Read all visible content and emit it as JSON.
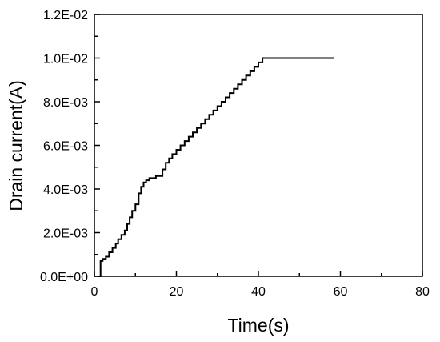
{
  "chart_data": {
    "type": "line",
    "title": "",
    "xlabel": "Time(s)",
    "ylabel": "Drain current(A)",
    "xlim": [
      0,
      80
    ],
    "ylim": [
      0,
      0.012
    ],
    "xticks": [
      {
        "value": 0,
        "label": "0"
      },
      {
        "value": 20,
        "label": "20"
      },
      {
        "value": 40,
        "label": "40"
      },
      {
        "value": 60,
        "label": "60"
      },
      {
        "value": 80,
        "label": "80"
      }
    ],
    "yticks": [
      {
        "value": 0,
        "label": "0.0E+00"
      },
      {
        "value": 0.002,
        "label": "2.0E-03"
      },
      {
        "value": 0.004,
        "label": "4.0E-03"
      },
      {
        "value": 0.006,
        "label": "6.0E-03"
      },
      {
        "value": 0.008,
        "label": "8.0E-03"
      },
      {
        "value": 0.01,
        "label": "1.0E-02"
      },
      {
        "value": 0.012,
        "label": "1.2E-02"
      }
    ],
    "grid": false,
    "legend": "none",
    "line_color": "#000000",
    "series": [
      {
        "x": [
          1.0,
          1.5,
          1.5,
          2.0,
          2.0,
          2.8,
          2.8,
          3.6,
          3.6,
          4.4,
          4.4,
          5.2,
          5.2,
          5.8,
          5.8,
          6.6,
          6.6,
          7.4,
          7.4,
          8.0,
          8.0,
          8.6,
          8.6,
          9.2,
          9.2,
          10.0,
          10.0,
          10.8,
          10.8,
          11.4,
          11.4,
          12.0,
          12.0,
          12.6,
          12.6,
          13.4,
          13.4,
          15.0,
          15.0,
          16.6,
          16.6,
          17.4,
          17.4,
          18.2,
          18.2,
          19.0,
          19.0,
          20.0,
          20.0,
          21.0,
          21.0,
          22.0,
          22.0,
          23.0,
          23.0,
          24.0,
          24.0,
          25.0,
          25.0,
          26.0,
          26.0,
          27.0,
          27.0,
          28.0,
          28.0,
          29.0,
          29.0,
          30.0,
          30.0,
          31.0,
          31.0,
          32.0,
          32.0,
          33.0,
          33.0,
          34.0,
          34.0,
          35.0,
          35.0,
          36.0,
          36.0,
          37.0,
          37.0,
          38.0,
          38.0,
          39.0,
          39.0,
          40.0,
          40.0,
          41.0,
          41.0,
          58.5
        ],
        "y": [
          0.0,
          0.0,
          0.0007,
          0.0007,
          0.0008,
          0.0008,
          0.0009,
          0.0009,
          0.0011,
          0.0011,
          0.0013,
          0.0013,
          0.0015,
          0.0015,
          0.0017,
          0.0017,
          0.0019,
          0.0019,
          0.0021,
          0.0021,
          0.0024,
          0.0024,
          0.0027,
          0.0027,
          0.003,
          0.003,
          0.0033,
          0.0033,
          0.0038,
          0.0038,
          0.0041,
          0.0041,
          0.0043,
          0.0043,
          0.0044,
          0.0044,
          0.0045,
          0.0045,
          0.0046,
          0.0046,
          0.0049,
          0.0049,
          0.0052,
          0.0052,
          0.0054,
          0.0054,
          0.0056,
          0.0056,
          0.0058,
          0.0058,
          0.006,
          0.006,
          0.0062,
          0.0062,
          0.0064,
          0.0064,
          0.0066,
          0.0066,
          0.0068,
          0.0068,
          0.007,
          0.007,
          0.0072,
          0.0072,
          0.0074,
          0.0074,
          0.0076,
          0.0076,
          0.0078,
          0.0078,
          0.008,
          0.008,
          0.0082,
          0.0082,
          0.0084,
          0.0084,
          0.0086,
          0.0086,
          0.0088,
          0.0088,
          0.009,
          0.009,
          0.0092,
          0.0092,
          0.0094,
          0.0094,
          0.0096,
          0.0096,
          0.0098,
          0.0098,
          0.01,
          0.01
        ]
      }
    ]
  }
}
